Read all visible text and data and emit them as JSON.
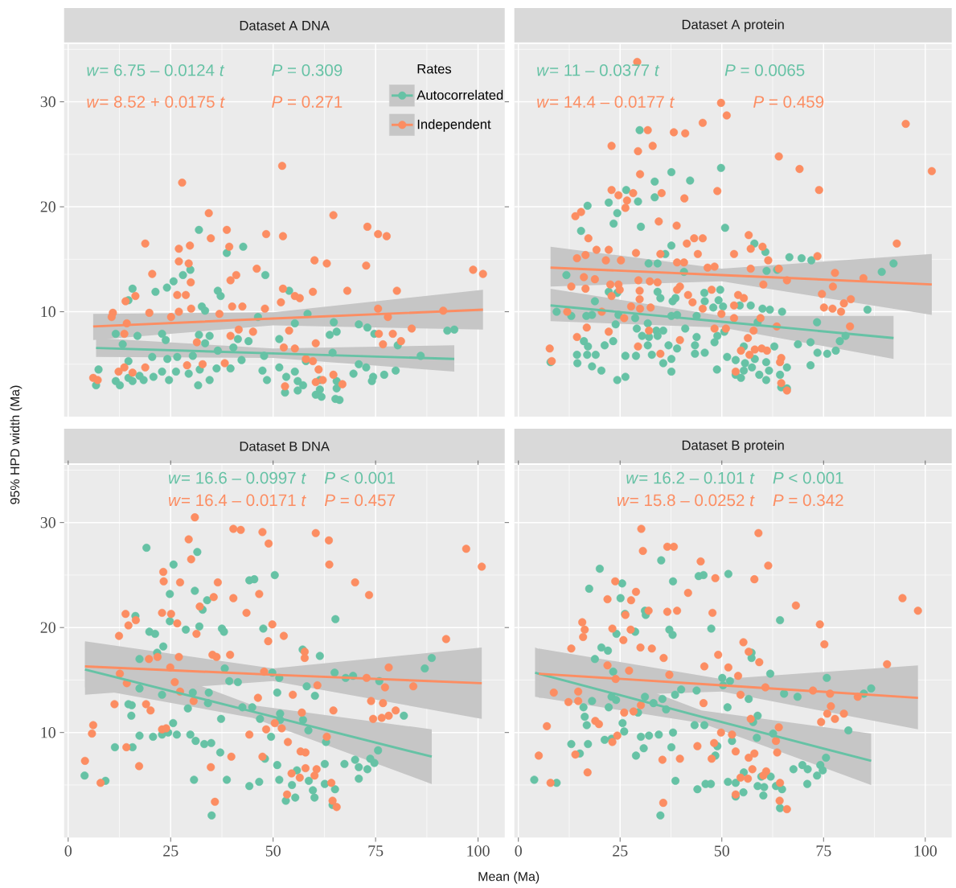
{
  "chart_data": [
    {
      "type": "scatter",
      "title": "Dataset A DNA",
      "xlim": [
        -1,
        106.5
      ],
      "ylim": [
        0,
        35.5
      ],
      "xticks": [
        0,
        25,
        50,
        75,
        100
      ],
      "yticks": [
        10,
        20,
        30
      ],
      "grid": true,
      "marker": "circle",
      "tick_labels": "y",
      "legend": "top right",
      "legend_title": "Rates",
      "annotations": [
        "*w*= 6.75 – 0.0124 *t*",
        "*P* = 0.309",
        "*w*= 8.52 + 0.0175 *t*",
        "*P* = 0.271"
      ],
      "series": [
        {
          "name": "Autocorrelated",
          "color": "#66c2a5",
          "x": [
            31.9,
            42.7,
            38.7,
            29.8,
            28.0,
            25.7,
            24.1,
            15.7,
            21.3,
            36.5,
            37.2,
            48.1,
            53.9,
            14.7,
            32.6,
            33.4,
            58.4,
            46.3,
            64.8,
            55.3,
            70.9,
            73.0,
            74.7,
            65.5,
            63.8,
            92.5,
            94.2,
            22.9,
            11.6,
            16.9,
            23.8,
            31.9,
            34.5,
            41.4,
            44.0,
            51.5,
            33.4,
            13.3,
            80.4,
            40.3,
            36.5,
            30.4,
            26.6,
            24.2,
            20.5,
            14.7,
            42.3,
            47.8,
            58.0,
            64.5,
            86.0,
            70.9,
            72.7,
            7.4,
            79.9,
            77.1,
            74.4,
            69.6,
            55.3,
            51.5,
            47.4,
            36.2,
            39.6,
            32.1,
            29.4,
            26.3,
            22.9,
            20.8,
            17.4,
            14.7,
            15.7,
            11.6,
            12.6,
            6.8,
            18.4,
            24.6,
            31.7,
            34.5,
            48.5,
            53.2,
            56.0,
            57.3,
            56.0,
            52.9,
            61.4,
            61.4,
            60.4,
            61.8,
            65.5,
            65.5,
            65.2,
            66.2,
            74.1
          ],
          "values": [
            17.8,
            16.2,
            15.6,
            14.0,
            13.5,
            12.9,
            12.3,
            12.2,
            11.9,
            12.0,
            11.5,
            13.5,
            12.0,
            11.1,
            10.5,
            10.1,
            9.8,
            9.5,
            9.0,
            8.9,
            8.8,
            8.5,
            7.9,
            8.1,
            7.8,
            8.2,
            8.3,
            7.9,
            7.9,
            7.7,
            7.3,
            7.8,
            7.7,
            7.4,
            7.2,
            7.4,
            7.0,
            6.9,
            6.8,
            6.6,
            6.3,
            5.8,
            5.7,
            5.5,
            5.7,
            5.3,
            5.4,
            5.8,
            5.3,
            6.1,
            5.8,
            5.0,
            4.7,
            4.5,
            4.4,
            4.0,
            3.8,
            4.1,
            4.3,
            4.7,
            4.4,
            4.6,
            4.6,
            4.5,
            4.1,
            4.3,
            4.3,
            3.8,
            3.9,
            3.7,
            3.4,
            3.4,
            3.0,
            3.0,
            3.5,
            3.5,
            3.0,
            3.5,
            3.5,
            3.8,
            3.4,
            3.0,
            2.5,
            2.3,
            3.5,
            2.6,
            2.1,
            1.9,
            3.4,
            2.7,
            1.7,
            1.6,
            3.4
          ]
        },
        {
          "name": "Independent",
          "color": "#fc8d62",
          "x": [
            52.2,
            27.8,
            34.3,
            64.7,
            38.7,
            18.8,
            34.8,
            48.3,
            52.4,
            73.0,
            75.6,
            77.7,
            27.0,
            29.7,
            39.3,
            27.0,
            29.4,
            20.5,
            41.0,
            39.6,
            46.0,
            60.1,
            63.1,
            72.7,
            98.8,
            101.2,
            26.6,
            28.7,
            16.4,
            14.0,
            29.9,
            52.4,
            55.3,
            56.5,
            59.7,
            68.1,
            80.2,
            51.9,
            40.0,
            42.5,
            30.0,
            19.8,
            10.9,
            10.6,
            27.0,
            36.9,
            48.0,
            75.6,
            91.5,
            78.0,
            14.3,
            25.1,
            83.8,
            79.2,
            75.8,
            76.8,
            81.2,
            53.9,
            45.1,
            41.6,
            39.6,
            31.4,
            60.4,
            13.7,
            52.6,
            55.3,
            58.0,
            59.7,
            61.1,
            29.0,
            32.8,
            38.2,
            13.7,
            12.3,
            18.8,
            15.7,
            6.1,
            7.2,
            64.7,
            62.1,
            66.9,
            60.4,
            52.9
          ],
          "values": [
            23.9,
            22.3,
            19.4,
            19.2,
            17.8,
            16.5,
            17.0,
            17.4,
            17.2,
            18.1,
            17.4,
            17.2,
            16.0,
            16.3,
            16.2,
            14.8,
            14.6,
            13.6,
            13.5,
            13.0,
            14.1,
            14.9,
            14.6,
            14.4,
            14.0,
            13.6,
            11.6,
            11.6,
            11.5,
            11.0,
            12.8,
            12.2,
            11.5,
            11.3,
            11.9,
            12.0,
            12.0,
            10.9,
            10.5,
            10.5,
            10.3,
            9.9,
            9.9,
            9.5,
            10.0,
            9.8,
            10.3,
            10.3,
            10.1,
            9.5,
            8.9,
            9.5,
            8.4,
            7.9,
            7.9,
            6.9,
            7.2,
            8.2,
            8.1,
            8.3,
            7.7,
            7.1,
            7.0,
            7.9,
            6.6,
            6.5,
            5.5,
            5.3,
            4.5,
            4.9,
            5.0,
            5.1,
            4.7,
            4.3,
            4.7,
            4.2,
            3.7,
            3.5,
            4.0,
            3.5,
            3.1,
            3.3,
            2.9
          ]
        },
        {
          "type": "line",
          "marker": "none",
          "color": "#66c2a5",
          "x": [
            6.8,
            50,
            94.2
          ],
          "values": [
            6.55,
            6.03,
            5.5
          ],
          "lower": [
            5.7,
            5.6,
            4.3
          ],
          "upper": [
            7.5,
            6.5,
            6.8
          ]
        },
        {
          "type": "line",
          "marker": "none",
          "color": "#fc8d62",
          "x": [
            6.1,
            50,
            101.2
          ],
          "values": [
            8.6,
            9.35,
            10.2
          ],
          "lower": [
            7.3,
            8.7,
            8.3
          ],
          "upper": [
            9.8,
            9.95,
            12.1
          ]
        }
      ]
    },
    {
      "type": "scatter",
      "title": "Dataset A protein",
      "xlim": [
        -1,
        106.5
      ],
      "ylim": [
        0,
        35.5
      ],
      "xticks": [
        0,
        25,
        50,
        75,
        100
      ],
      "yticks": [
        10,
        20,
        30
      ],
      "grid": true,
      "marker": "circle",
      "tick_labels": false,
      "annotations": [
        "*w*= 11 – 0.0377 *t*",
        "*P* = 0.0065",
        "*w*= 14.4 – 0.0177 *t*",
        "*P* = 0.459"
      ],
      "series": [
        {
          "color": "#66c2a5",
          "x": [
            29.8,
            49.8,
            37.6,
            42.2,
            33.5,
            33.5,
            26.5,
            22.2,
            29.4,
            17.0,
            24.3,
            23.4,
            30.1,
            15.4,
            50.8,
            58.0,
            60.7,
            37.6,
            36.1,
            66.6,
            69.6,
            72.0,
            92.2,
            89.3,
            63.6,
            61.0,
            32.0,
            34.2,
            11.8,
            40.7,
            22.2,
            24.3,
            34.2,
            34.9,
            38.6,
            37.9,
            45.7,
            49.6,
            45.8,
            49.2,
            50.3,
            47.9,
            54.4,
            57.1,
            60.0,
            61.8,
            64.8,
            85.8,
            18.8,
            9.4,
            13.0,
            16.7,
            18.1,
            24.6,
            28.7,
            37.6,
            39.0,
            43.8,
            58.8,
            73.4,
            23.9,
            31.8,
            29.1,
            33.9,
            35.6,
            41.0,
            30.4,
            32.1,
            34.2,
            43.8,
            48.9,
            50.6,
            71.8,
            80.4,
            79.0,
            16.1,
            17.1,
            21.2,
            23.3,
            31.8,
            36.9,
            39.0,
            43.4,
            48.2,
            68.7,
            73.5,
            78.0,
            75.9,
            62.9,
            55.4,
            14.4,
            16.9,
            19.0,
            26.3,
            28.9,
            32.8,
            37.6,
            43.4,
            45.8,
            7.9,
            14.5,
            18.1,
            20.4,
            35.6,
            37.6,
            24.3,
            26.3,
            48.8,
            51.3,
            53.4,
            55.7,
            58.1,
            60.9,
            57.4,
            55.4,
            53.4,
            54.7,
            59.2,
            60.9,
            61.6,
            66.0,
            64.3,
            71.8,
            64.6,
            66.0
          ],
          "values": [
            27.3,
            23.7,
            23.3,
            22.5,
            22.4,
            20.9,
            21.6,
            20.4,
            20.5,
            20.1,
            19.4,
            18.4,
            18.1,
            17.7,
            18.0,
            16.5,
            15.7,
            16.3,
            15.5,
            15.2,
            15.1,
            14.9,
            14.6,
            13.8,
            14.0,
            13.9,
            14.6,
            14.6,
            13.5,
            13.8,
            11.9,
            11.8,
            11.9,
            11.3,
            11.3,
            11.0,
            11.8,
            12.1,
            11.0,
            11.1,
            10.5,
            10.4,
            10.6,
            10.6,
            10.3,
            10.2,
            10.0,
            10.2,
            11.0,
            10.0,
            9.6,
            9.6,
            9.7,
            9.7,
            9.4,
            9.6,
            9.7,
            9.6,
            9.0,
            9.0,
            8.8,
            8.9,
            8.4,
            8.2,
            8.2,
            8.4,
            7.7,
            7.6,
            7.7,
            7.6,
            7.7,
            8.1,
            7.1,
            7.7,
            7.2,
            7.2,
            6.7,
            6.8,
            7.2,
            6.8,
            6.8,
            6.5,
            6.8,
            7.1,
            6.9,
            6.1,
            6.3,
            6.0,
            6.7,
            6.7,
            5.9,
            5.9,
            5.9,
            5.8,
            5.8,
            5.9,
            5.5,
            6.0,
            6.1,
            5.2,
            5.1,
            4.8,
            4.4,
            5.1,
            4.3,
            3.5,
            3.8,
            4.5,
            5.7,
            5.4,
            5.1,
            5.5,
            5.2,
            4.7,
            4.4,
            4.0,
            3.7,
            4.0,
            3.5,
            4.4,
            4.7,
            4.0,
            4.9,
            2.8,
            2.7
          ]
        },
        {
          "color": "#fc8d62",
          "x": [
            29.2,
            49.8,
            51.2,
            45.3,
            31.8,
            38.2,
            41.0,
            22.9,
            29.4,
            33.0,
            95.2,
            64.0,
            69.1,
            101.6,
            29.9,
            48.9,
            73.9,
            22.9,
            24.6,
            28.2,
            35.2,
            40.8,
            26.7,
            26.3,
            15.4,
            14.0,
            34.5,
            38.9,
            17.2,
            43.2,
            45.3,
            41.4,
            56.6,
            93.0,
            19.2,
            22.2,
            28.9,
            34.9,
            44.1,
            53.0,
            60.0,
            57.1,
            61.4,
            73.5,
            14.4,
            16.5,
            21.5,
            25.2,
            39.0,
            40.7,
            46.5,
            48.2,
            57.1,
            64.0,
            77.8,
            84.8,
            66.0,
            60.2,
            16.1,
            18.8,
            13.0,
            16.5,
            22.6,
            24.6,
            29.5,
            32.3,
            34.2,
            29.8,
            39.7,
            39.0,
            24.9,
            22.9,
            29.8,
            47.5,
            77.3,
            74.6,
            54.0,
            55.4,
            81.7,
            80.0,
            75.1,
            77.2,
            79.3,
            41.7,
            42.8,
            45.3,
            53.0,
            27.7,
            32.5,
            29.9,
            12.0,
            20.5,
            26.0,
            49.9,
            53.0,
            59.5,
            16.8,
            22.2,
            14.4,
            63.5,
            81.5,
            48.2,
            51.0,
            57.8,
            32.1,
            56.4,
            39.7,
            29.4,
            34.9,
            7.7,
            8.2,
            58.1,
            59.8,
            61.1,
            54.7,
            56.8,
            64.6,
            64.3,
            53.4,
            64.6,
            66.0
          ],
          "values": [
            33.8,
            29.9,
            28.7,
            28.0,
            27.3,
            27.1,
            27.0,
            25.8,
            25.3,
            25.8,
            27.9,
            24.8,
            23.6,
            23.4,
            23.1,
            21.5,
            21.6,
            21.6,
            21.1,
            21.3,
            21.3,
            20.8,
            20.6,
            19.9,
            19.5,
            19.1,
            18.6,
            18.2,
            17.0,
            17.0,
            17.0,
            16.5,
            17.3,
            16.5,
            15.9,
            15.9,
            15.6,
            15.5,
            15.5,
            15.5,
            16.2,
            16.0,
            14.9,
            15.3,
            15.1,
            15.4,
            14.9,
            14.9,
            14.7,
            14.7,
            14.2,
            14.3,
            14.1,
            14.1,
            13.7,
            13.2,
            13.0,
            12.6,
            13.3,
            13.1,
            12.4,
            12.2,
            12.6,
            12.6,
            13.0,
            12.9,
            12.8,
            12.0,
            12.4,
            12.1,
            12.1,
            11.5,
            11.2,
            12.1,
            12.4,
            11.7,
            11.6,
            11.3,
            11.2,
            10.8,
            10.4,
            10.3,
            10.0,
            11.6,
            10.9,
            10.3,
            10.6,
            10.5,
            10.4,
            10.3,
            10.0,
            10.0,
            9.4,
            9.8,
            9.4,
            9.4,
            8.5,
            8.1,
            7.6,
            8.6,
            8.6,
            8.4,
            8.4,
            8.2,
            8.2,
            7.5,
            7.3,
            6.7,
            6.0,
            6.5,
            5.3,
            6.4,
            6.5,
            6.3,
            6.3,
            5.9,
            5.6,
            5.2,
            4.3,
            3.2,
            2.5
          ]
        },
        {
          "type": "line",
          "marker": "none",
          "color": "#66c2a5",
          "x": [
            7.9,
            50,
            92.2
          ],
          "values": [
            10.6,
            9.05,
            7.5
          ],
          "lower": [
            9.1,
            8.5,
            5.5
          ],
          "upper": [
            12.2,
            9.6,
            9.6
          ]
        },
        {
          "type": "line",
          "marker": "none",
          "color": "#fc8d62",
          "x": [
            7.9,
            50,
            101.6
          ],
          "values": [
            14.2,
            13.5,
            12.6
          ],
          "lower": [
            12.4,
            12.9,
            9.7
          ],
          "upper": [
            16.2,
            14.1,
            15.5
          ]
        }
      ]
    },
    {
      "type": "scatter",
      "title": "Dataset B DNA",
      "xlabel": "Mean (Ma)",
      "ylabel": "95% HPD width (Ma)",
      "xlim": [
        -1,
        106.5
      ],
      "ylim": [
        0,
        35.5
      ],
      "xticks": [
        0,
        25,
        50,
        75,
        100
      ],
      "yticks": [
        10,
        20,
        30
      ],
      "grid": true,
      "marker": "circle",
      "annotations": [
        "*w*= 16.6 – 0.0997 *t*",
        "*P* < 0.001",
        "*w*= 16.4 – 0.0171 *t*",
        "*P* = 0.457"
      ],
      "series": [
        {
          "color": "#66c2a5",
          "x": [
            19.1,
            31.5,
            25.7,
            50.4,
            44.2,
            45.4,
            30.9,
            24.8,
            33.9,
            32.8,
            16.4,
            24.8,
            28.7,
            32.0,
            37.5,
            38.0,
            19.8,
            21.2,
            47.6,
            65.2,
            23.2,
            21.7,
            17.4,
            57.2,
            61.4,
            88.7,
            87.0,
            65.0,
            67.7,
            69.5,
            75.9,
            49.8,
            51.5,
            38.2,
            39.3,
            41.4,
            58.2,
            60.2,
            51.0,
            17.4,
            22.9,
            30.4,
            34.3,
            34.1,
            14.7,
            15.5,
            29.2,
            42.5,
            44.9,
            15.4,
            37.3,
            51.7,
            51.7,
            46.8,
            57.3,
            58.6,
            81.9,
            25.6,
            17.4,
            20.7,
            22.9,
            24.4,
            26.5,
            29.8,
            31.1,
            33.2,
            34.9,
            37.1,
            49.5,
            62.9,
            75.6,
            11.4,
            15.7,
            48.0,
            51.0,
            62.6,
            67.4,
            70.0,
            70.9,
            73.0,
            73.7,
            74.7,
            70.9,
            55.8,
            4.0,
            9.1,
            30.7,
            38.7,
            44.2,
            46.6,
            51.5,
            54.6,
            58.7,
            59.7,
            60.1,
            62.6,
            65.1,
            53.1,
            55.4,
            64.5,
            35.0
          ],
          "values": [
            27.6,
            27.2,
            26.0,
            25.0,
            24.5,
            24.6,
            23.5,
            23.2,
            22.6,
            21.7,
            21.1,
            20.6,
            19.8,
            20.1,
            19.9,
            19.6,
            19.6,
            19.4,
            19.9,
            20.8,
            18.2,
            17.6,
            17.0,
            17.9,
            17.3,
            17.1,
            16.1,
            15.7,
            15.2,
            15.4,
            14.9,
            15.7,
            15.2,
            16.1,
            14.9,
            14.8,
            14.4,
            13.5,
            13.8,
            14.2,
            13.6,
            13.8,
            13.8,
            12.8,
            12.7,
            12.6,
            12.3,
            12.4,
            12.4,
            11.6,
            11.3,
            11.8,
            11.2,
            11.3,
            11.2,
            10.2,
            11.6,
            10.9,
            9.7,
            9.6,
            9.8,
            10.0,
            9.8,
            9.8,
            9.2,
            8.9,
            9.0,
            8.1,
            9.6,
            9.1,
            8.3,
            8.6,
            8.6,
            7.5,
            6.9,
            7.0,
            7.0,
            7.4,
            6.7,
            6.5,
            7.5,
            7.1,
            5.6,
            6.4,
            5.9,
            5.4,
            5.5,
            5.5,
            4.9,
            5.3,
            5.5,
            5.0,
            5.4,
            4.5,
            3.8,
            5.1,
            4.6,
            3.5,
            3.8,
            3.1,
            2.1
          ]
        },
        {
          "color": "#fc8d62",
          "x": [
            30.9,
            40.3,
            42.1,
            47.4,
            60.4,
            29.4,
            63.6,
            48.9,
            30.0,
            97.1,
            100.9,
            23.2,
            63.7,
            23.3,
            27.3,
            36.5,
            70.0,
            73.4,
            46.6,
            40.3,
            35.5,
            32.1,
            22.9,
            25.1,
            14.0,
            16.5,
            14.7,
            26.6,
            31.3,
            43.5,
            49.8,
            52.6,
            48.8,
            12.4,
            92.2,
            35.2,
            36.2,
            39.5,
            27.0,
            19.7,
            21.8,
            57.7,
            57.7,
            47.8,
            24.9,
            12.6,
            14.3,
            26.0,
            27.3,
            78.2,
            72.8,
            77.3,
            84.2,
            60.8,
            54.8,
            46.3,
            30.6,
            73.9,
            76.8,
            11.3,
            19.0,
            20.1,
            64.7,
            57.0,
            74.4,
            76.5,
            78.2,
            79.9,
            50.4,
            52.1,
            48.3,
            6.1,
            5.8,
            22.9,
            23.9,
            44.2,
            63.1,
            53.6,
            14.2,
            56.7,
            57.9,
            39.8,
            4.1,
            17.3,
            34.8,
            47.4,
            57.9,
            60.6,
            60.1,
            54.5,
            56.5,
            64.2,
            7.9,
            53.4,
            64.5,
            65.5,
            35.8
          ],
          "values": [
            30.5,
            29.4,
            29.3,
            29.1,
            29.0,
            28.4,
            28.3,
            28.0,
            26.5,
            27.5,
            25.8,
            25.3,
            26.0,
            24.4,
            24.3,
            24.3,
            24.3,
            23.1,
            23.2,
            22.8,
            22.9,
            22.0,
            21.4,
            21.3,
            21.3,
            20.7,
            20.2,
            20.4,
            19.4,
            21.4,
            20.3,
            19.2,
            18.7,
            19.2,
            18.9,
            17.4,
            17.2,
            17.4,
            17.2,
            17.0,
            17.2,
            17.7,
            17.1,
            15.8,
            16.2,
            15.6,
            14.7,
            14.8,
            13.9,
            16.2,
            15.2,
            14.3,
            14.4,
            14.5,
            13.6,
            13.3,
            13.0,
            13.0,
            12.8,
            12.7,
            12.7,
            12.1,
            12.1,
            11.9,
            11.3,
            11.4,
            11.6,
            12.1,
            10.9,
            10.4,
            10.3,
            10.7,
            9.9,
            10.3,
            10.4,
            9.8,
            9.6,
            9.1,
            8.6,
            8.2,
            8.1,
            7.7,
            7.3,
            6.8,
            6.7,
            7.7,
            6.6,
            6.5,
            5.9,
            6.1,
            5.7,
            5.2,
            5.2,
            4.1,
            3.5,
            2.9,
            3.4
          ]
        },
        {
          "type": "line",
          "marker": "none",
          "color": "#66c2a5",
          "x": [
            4.1,
            45,
            88.7
          ],
          "values": [
            16.0,
            12.0,
            7.7
          ],
          "lower": [
            14.3,
            11.4,
            5.1
          ],
          "upper": [
            18.6,
            12.6,
            10.3
          ]
        },
        {
          "type": "line",
          "marker": "none",
          "color": "#fc8d62",
          "x": [
            4.1,
            50,
            100.9
          ],
          "values": [
            16.3,
            15.5,
            14.7
          ],
          "lower": [
            13.6,
            14.9,
            11.3
          ],
          "upper": [
            18.7,
            16.1,
            18.1
          ]
        }
      ]
    },
    {
      "type": "scatter",
      "title": "Dataset B protein",
      "xlim": [
        -1,
        106.5
      ],
      "ylim": [
        0,
        35.5
      ],
      "xticks": [
        0,
        25,
        50,
        75,
        100
      ],
      "yticks": [
        10,
        20,
        30
      ],
      "grid": true,
      "marker": "circle",
      "tick_labels": "x",
      "annotations": [
        "*w*= 16.2 – 0.101 *t*",
        "*P* < 0.001",
        "*w*= 15.8 – 0.0252 *t*",
        "*P* = 0.342"
      ],
      "series": [
        {
          "color": "#66c2a5",
          "x": [
            20.0,
            35.1,
            44.3,
            45.5,
            51.6,
            25.5,
            38.0,
            17.4,
            25.1,
            31.1,
            31.3,
            26.2,
            47.4,
            64.3,
            37.1,
            37.9,
            28.7,
            24.1,
            20.4,
            22.0,
            57.3,
            57.3,
            18.8,
            23.3,
            61.9,
            75.8,
            50.1,
            52.0,
            50.3,
            40.0,
            43.8,
            86.7,
            84.9,
            65.3,
            68.6,
            38.5,
            35.4,
            31.1,
            56.6,
            22.9,
            24.0,
            18.1,
            22.2,
            33.2,
            36.3,
            51.4,
            16.0,
            29.4,
            58.8,
            16.3,
            16.8,
            25.6,
            57.7,
            43.3,
            45.7,
            81.1,
            26.0,
            38.0,
            30.1,
            32.1,
            34.5,
            58.6,
            62.6,
            21.2,
            22.9,
            13.0,
            17.1,
            52.5,
            48.9,
            37.6,
            30.8,
            15.1,
            28.9,
            48.4,
            75.6,
            67.6,
            69.8,
            71.1,
            73.4,
            74.2,
            74.8,
            55.4,
            59.7,
            62.0,
            3.9,
            9.4,
            38.6,
            44.0,
            46.0,
            47.3,
            51.5,
            53.4,
            58.8,
            60.4,
            63.3,
            64.8,
            71.0,
            55.3,
            60.2,
            53.4,
            64.3,
            34.9
          ],
          "values": [
            25.6,
            26.4,
            24.9,
            25.0,
            25.1,
            24.2,
            24.4,
            23.7,
            22.8,
            21.6,
            21.2,
            21.3,
            19.9,
            20.7,
            19.8,
            19.3,
            19.6,
            19.4,
            18.1,
            17.8,
            17.6,
            17.1,
            17.0,
            15.8,
            15.6,
            15.2,
            15.2,
            14.9,
            14.5,
            14.1,
            14.0,
            14.2,
            13.7,
            13.7,
            13.4,
            13.6,
            13.2,
            13.4,
            13.2,
            13.4,
            13.1,
            13.0,
            12.4,
            12.8,
            12.2,
            12.4,
            12.4,
            11.9,
            11.6,
            11.5,
            10.7,
            10.9,
            11.0,
            10.7,
            10.7,
            10.2,
            10.1,
            10.0,
            9.6,
            9.7,
            9.8,
            9.5,
            9.9,
            9.3,
            9.4,
            8.9,
            8.9,
            9.2,
            8.7,
            8.6,
            8.5,
            8.0,
            7.8,
            7.8,
            7.6,
            6.5,
            6.9,
            6.5,
            5.9,
            6.9,
            6.4,
            6.2,
            5.8,
            5.8,
            5.5,
            5.2,
            5.4,
            4.6,
            5.1,
            5.1,
            5.3,
            5.2,
            4.9,
            4.8,
            4.9,
            4.6,
            5.1,
            4.3,
            4.0,
            3.9,
            2.8,
            2.1
          ]
        },
        {
          "color": "#fc8d62",
          "x": [
            30.2,
            59.0,
            30.6,
            36.6,
            38.2,
            44.8,
            61.4,
            48.4,
            58.0,
            23.8,
            28.9,
            21.9,
            27.7,
            41.7,
            68.2,
            94.4,
            98.2,
            32.0,
            36.6,
            39.0,
            47.7,
            26.3,
            15.7,
            16.3,
            15.9,
            23.1,
            27.6,
            25.8,
            74.1,
            75.2,
            55.3,
            30.0,
            32.8,
            13.0,
            35.7,
            49.1,
            56.6,
            59.2,
            45.7,
            51.6,
            90.6,
            21.9,
            27.2,
            37.1,
            54.0,
            23.9,
            8.7,
            14.7,
            12.3,
            14.7,
            54.6,
            60.7,
            72.4,
            76.6,
            83.4,
            76.8,
            75.9,
            77.8,
            80.0,
            74.4,
            45.5,
            30.1,
            26.0,
            28.3,
            18.9,
            19.8,
            7.0,
            57.1,
            64.0,
            49.8,
            52.5,
            24.3,
            23.1,
            63.3,
            44.0,
            48.1,
            53.4,
            63.6,
            58.0,
            56.6,
            5.0,
            14.0,
            35.4,
            39.7,
            47.5,
            17.0,
            57.5,
            60.9,
            60.2,
            54.6,
            56.4,
            64.3,
            7.9,
            53.4,
            64.2,
            66.0,
            35.6
          ],
          "values": [
            29.4,
            29.0,
            27.3,
            27.7,
            27.7,
            26.3,
            25.9,
            24.7,
            24.6,
            24.4,
            23.4,
            22.7,
            22.6,
            23.3,
            22.1,
            22.8,
            21.6,
            21.6,
            21.5,
            21.6,
            21.4,
            21.2,
            20.5,
            19.8,
            19.1,
            19.9,
            19.8,
            18.8,
            20.3,
            18.4,
            18.6,
            18.1,
            18.0,
            18.0,
            17.1,
            17.4,
            17.7,
            16.7,
            16.3,
            16.2,
            16.5,
            16.4,
            15.9,
            15.5,
            15.4,
            15.1,
            13.8,
            13.9,
            12.9,
            13.0,
            13.6,
            14.3,
            14.0,
            13.7,
            13.4,
            12.5,
            11.8,
            11.3,
            11.8,
            11.0,
            12.8,
            12.6,
            11.9,
            12.0,
            11.1,
            10.8,
            10.6,
            11.3,
            10.5,
            10.0,
            9.8,
            9.7,
            9.1,
            9.2,
            8.7,
            9.0,
            8.2,
            8.1,
            8.0,
            7.6,
            7.8,
            7.9,
            7.4,
            7.5,
            7.5,
            6.2,
            6.5,
            6.3,
            5.9,
            5.7,
            5.6,
            5.2,
            5.2,
            4.1,
            3.5,
            2.7,
            3.3
          ]
        },
        {
          "type": "line",
          "marker": "none",
          "color": "#66c2a5",
          "x": [
            4.1,
            45,
            86.7
          ],
          "values": [
            15.7,
            11.5,
            7.3
          ],
          "lower": [
            13.4,
            10.9,
            5.0
          ],
          "upper": [
            18.1,
            12.1,
            9.9
          ]
        },
        {
          "type": "line",
          "marker": "none",
          "color": "#fc8d62",
          "x": [
            5.0,
            50,
            98.2
          ],
          "values": [
            15.6,
            14.5,
            13.3
          ],
          "lower": [
            13.3,
            13.9,
            10.3
          ],
          "upper": [
            18.0,
            15.1,
            16.4
          ]
        }
      ]
    }
  ]
}
